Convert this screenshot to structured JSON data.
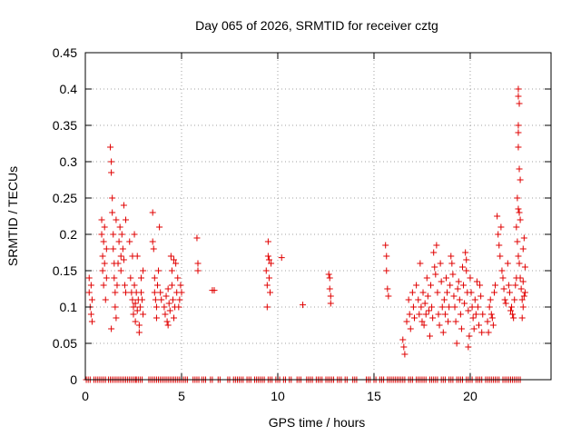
{
  "chart_data": {
    "type": "scatter",
    "title": "Day 065 of 2026, SRMTID for receiver cztg",
    "xlabel": "GPS time / hours",
    "ylabel": "SRMTID / TECUs",
    "xlim": [
      0,
      24.2
    ],
    "ylim": [
      0,
      0.45
    ],
    "x_ticks": [
      0,
      5,
      10,
      15,
      20
    ],
    "x_tick_labels": [
      "0",
      "5",
      "10",
      "15",
      "20"
    ],
    "y_ticks": [
      0,
      0.05,
      0.1,
      0.15,
      0.2,
      0.25,
      0.3,
      0.35,
      0.4,
      0.45
    ],
    "y_tick_labels": [
      "0",
      "0.05",
      "0.1",
      "0.15",
      "0.2",
      "0.25",
      "0.3",
      "0.35",
      "0.4",
      "0.45"
    ],
    "grid": true,
    "marker": "+",
    "series": [
      {
        "name": "SRMTID",
        "color": "#e00000",
        "points": [
          [
            0.2,
            0.14
          ],
          [
            0.2,
            0.12
          ],
          [
            0.25,
            0.1
          ],
          [
            0.3,
            0.13
          ],
          [
            0.3,
            0.09
          ],
          [
            0.35,
            0.08
          ],
          [
            0.35,
            0.11
          ],
          [
            0.85,
            0.2
          ],
          [
            0.85,
            0.22
          ],
          [
            0.9,
            0.17
          ],
          [
            0.9,
            0.15
          ],
          [
            0.95,
            0.13
          ],
          [
            0.95,
            0.19
          ],
          [
            1.0,
            0.21
          ],
          [
            1.0,
            0.16
          ],
          [
            1.05,
            0.11
          ],
          [
            1.1,
            0.14
          ],
          [
            1.1,
            0.18
          ],
          [
            1.3,
            0.32
          ],
          [
            1.35,
            0.3
          ],
          [
            1.35,
            0.285
          ],
          [
            1.4,
            0.25
          ],
          [
            1.4,
            0.23
          ],
          [
            1.45,
            0.2
          ],
          [
            1.45,
            0.18
          ],
          [
            1.5,
            0.16
          ],
          [
            1.5,
            0.14
          ],
          [
            1.55,
            0.12
          ],
          [
            1.55,
            0.1
          ],
          [
            1.6,
            0.22
          ],
          [
            1.6,
            0.085
          ],
          [
            1.65,
            0.13
          ],
          [
            1.35,
            0.07
          ],
          [
            1.7,
            0.16
          ],
          [
            1.75,
            0.19
          ],
          [
            1.8,
            0.21
          ],
          [
            1.85,
            0.17
          ],
          [
            1.85,
            0.15
          ],
          [
            1.9,
            0.2
          ],
          [
            1.95,
            0.18
          ],
          [
            2.0,
            0.165
          ],
          [
            2.0,
            0.24
          ],
          [
            2.05,
            0.13
          ],
          [
            2.1,
            0.12
          ],
          [
            2.1,
            0.22
          ],
          [
            2.3,
            0.19
          ],
          [
            2.35,
            0.14
          ],
          [
            2.4,
            0.12
          ],
          [
            2.45,
            0.11
          ],
          [
            2.5,
            0.1
          ],
          [
            2.5,
            0.09
          ],
          [
            2.55,
            0.13
          ],
          [
            2.6,
            0.08
          ],
          [
            2.6,
            0.105
          ],
          [
            2.65,
            0.12
          ],
          [
            2.7,
            0.095
          ],
          [
            2.7,
            0.17
          ],
          [
            2.75,
            0.11
          ],
          [
            2.8,
            0.075
          ],
          [
            2.8,
            0.065
          ],
          [
            2.85,
            0.1
          ],
          [
            2.9,
            0.14
          ],
          [
            2.9,
            0.12
          ],
          [
            2.95,
            0.11
          ],
          [
            3.0,
            0.09
          ],
          [
            3.0,
            0.15
          ],
          [
            2.55,
            0.2
          ],
          [
            2.45,
            0.17
          ],
          [
            3.5,
            0.23
          ],
          [
            3.5,
            0.19
          ],
          [
            3.55,
            0.18
          ],
          [
            3.6,
            0.14
          ],
          [
            3.6,
            0.12
          ],
          [
            3.65,
            0.11
          ],
          [
            3.7,
            0.1
          ],
          [
            3.7,
            0.085
          ],
          [
            3.75,
            0.13
          ],
          [
            3.8,
            0.15
          ],
          [
            3.85,
            0.21
          ],
          [
            3.9,
            0.12
          ],
          [
            3.95,
            0.11
          ],
          [
            4.1,
            0.1
          ],
          [
            4.15,
            0.09
          ],
          [
            4.2,
            0.115
          ],
          [
            4.25,
            0.08
          ],
          [
            4.3,
            0.125
          ],
          [
            4.35,
            0.105
          ],
          [
            4.4,
            0.095
          ],
          [
            4.45,
            0.17
          ],
          [
            4.5,
            0.15
          ],
          [
            4.5,
            0.13
          ],
          [
            4.55,
            0.11
          ],
          [
            4.6,
            0.085
          ],
          [
            4.65,
            0.1
          ],
          [
            4.7,
            0.16
          ],
          [
            4.75,
            0.12
          ],
          [
            4.8,
            0.14
          ],
          [
            4.85,
            0.1
          ],
          [
            4.9,
            0.11
          ],
          [
            4.95,
            0.13
          ],
          [
            5.0,
            0.12
          ],
          [
            4.3,
            0.075
          ],
          [
            4.6,
            0.165
          ],
          [
            5.8,
            0.195
          ],
          [
            5.85,
            0.16
          ],
          [
            5.85,
            0.15
          ],
          [
            6.6,
            0.123
          ],
          [
            6.7,
            0.123
          ],
          [
            9.4,
            0.15
          ],
          [
            9.45,
            0.13
          ],
          [
            9.45,
            0.1
          ],
          [
            9.5,
            0.19
          ],
          [
            9.5,
            0.17
          ],
          [
            9.55,
            0.165
          ],
          [
            9.55,
            0.14
          ],
          [
            9.6,
            0.12
          ],
          [
            9.65,
            0.16
          ],
          [
            10.2,
            0.168
          ],
          [
            11.3,
            0.103
          ],
          [
            12.65,
            0.145
          ],
          [
            12.7,
            0.14
          ],
          [
            12.7,
            0.125
          ],
          [
            12.75,
            0.115
          ],
          [
            12.75,
            0.105
          ],
          [
            15.6,
            0.185
          ],
          [
            15.65,
            0.17
          ],
          [
            15.65,
            0.15
          ],
          [
            15.7,
            0.125
          ],
          [
            15.75,
            0.115
          ],
          [
            16.5,
            0.055
          ],
          [
            16.55,
            0.045
          ],
          [
            16.6,
            0.035
          ],
          [
            16.7,
            0.08
          ],
          [
            16.8,
            0.11
          ],
          [
            16.85,
            0.09
          ],
          [
            16.9,
            0.07
          ],
          [
            17.0,
            0.12
          ],
          [
            17.05,
            0.1
          ],
          [
            17.1,
            0.085
          ],
          [
            17.2,
            0.13
          ],
          [
            17.3,
            0.11
          ],
          [
            17.35,
            0.09
          ],
          [
            17.4,
            0.16
          ],
          [
            17.45,
            0.1
          ],
          [
            17.5,
            0.08
          ],
          [
            17.55,
            0.12
          ],
          [
            17.6,
            0.075
          ],
          [
            17.65,
            0.105
          ],
          [
            17.7,
            0.09
          ],
          [
            17.75,
            0.14
          ],
          [
            17.8,
            0.115
          ],
          [
            17.85,
            0.095
          ],
          [
            17.9,
            0.06
          ],
          [
            17.95,
            0.13
          ],
          [
            18.0,
            0.1
          ],
          [
            18.05,
            0.085
          ],
          [
            18.1,
            0.175
          ],
          [
            18.15,
            0.155
          ],
          [
            18.2,
            0.145
          ],
          [
            18.25,
            0.185
          ],
          [
            18.3,
            0.12
          ],
          [
            18.35,
            0.09
          ],
          [
            18.4,
            0.075
          ],
          [
            18.45,
            0.16
          ],
          [
            18.5,
            0.135
          ],
          [
            18.55,
            0.1
          ],
          [
            18.6,
            0.065
          ],
          [
            18.65,
            0.11
          ],
          [
            18.7,
            0.09
          ],
          [
            18.75,
            0.14
          ],
          [
            18.8,
            0.12
          ],
          [
            18.85,
            0.08
          ],
          [
            18.9,
            0.1
          ],
          [
            18.95,
            0.13
          ],
          [
            19.0,
            0.17
          ],
          [
            19.05,
            0.16
          ],
          [
            19.1,
            0.145
          ],
          [
            19.15,
            0.115
          ],
          [
            19.2,
            0.1
          ],
          [
            19.25,
            0.08
          ],
          [
            19.3,
            0.05
          ],
          [
            19.35,
            0.125
          ],
          [
            19.4,
            0.135
          ],
          [
            19.45,
            0.11
          ],
          [
            19.5,
            0.09
          ],
          [
            19.55,
            0.07
          ],
          [
            19.6,
            0.155
          ],
          [
            19.65,
            0.13
          ],
          [
            19.7,
            0.105
          ],
          [
            19.75,
            0.175
          ],
          [
            19.8,
            0.15
          ],
          [
            19.85,
            0.12
          ],
          [
            19.9,
            0.095
          ],
          [
            19.95,
            0.06
          ],
          [
            19.9,
            0.045
          ],
          [
            19.8,
            0.165
          ],
          [
            20.0,
            0.14
          ],
          [
            20.05,
            0.12
          ],
          [
            20.1,
            0.1
          ],
          [
            20.15,
            0.085
          ],
          [
            20.2,
            0.07
          ],
          [
            20.25,
            0.11
          ],
          [
            20.3,
            0.09
          ],
          [
            20.35,
            0.135
          ],
          [
            20.4,
            0.1
          ],
          [
            20.45,
            0.075
          ],
          [
            20.5,
            0.13
          ],
          [
            20.55,
            0.115
          ],
          [
            20.6,
            0.065
          ],
          [
            20.65,
            0.09
          ],
          [
            20.9,
            0.08
          ],
          [
            20.95,
            0.065
          ],
          [
            21.0,
            0.1
          ],
          [
            21.05,
            0.11
          ],
          [
            21.1,
            0.09
          ],
          [
            21.15,
            0.085
          ],
          [
            21.2,
            0.075
          ],
          [
            21.25,
            0.12
          ],
          [
            21.3,
            0.13
          ],
          [
            21.4,
            0.225
          ],
          [
            21.45,
            0.2
          ],
          [
            21.5,
            0.185
          ],
          [
            21.55,
            0.17
          ],
          [
            21.6,
            0.21
          ],
          [
            21.65,
            0.15
          ],
          [
            21.7,
            0.14
          ],
          [
            21.75,
            0.125
          ],
          [
            21.8,
            0.11
          ],
          [
            21.85,
            0.105
          ],
          [
            21.95,
            0.16
          ],
          [
            22.0,
            0.13
          ],
          [
            22.05,
            0.12
          ],
          [
            22.1,
            0.095
          ],
          [
            22.15,
            0.1
          ],
          [
            22.2,
            0.09
          ],
          [
            22.25,
            0.085
          ],
          [
            22.3,
            0.11
          ],
          [
            22.35,
            0.13
          ],
          [
            22.4,
            0.14
          ],
          [
            22.5,
            0.4
          ],
          [
            22.5,
            0.39
          ],
          [
            22.55,
            0.38
          ],
          [
            22.5,
            0.35
          ],
          [
            22.5,
            0.34
          ],
          [
            22.5,
            0.32
          ],
          [
            22.55,
            0.29
          ],
          [
            22.6,
            0.275
          ],
          [
            22.45,
            0.25
          ],
          [
            22.5,
            0.235
          ],
          [
            22.55,
            0.23
          ],
          [
            22.6,
            0.22
          ],
          [
            22.4,
            0.21
          ],
          [
            22.45,
            0.19
          ],
          [
            22.5,
            0.17
          ],
          [
            22.55,
            0.16
          ],
          [
            22.6,
            0.14
          ],
          [
            22.65,
            0.125
          ],
          [
            22.7,
            0.11
          ],
          [
            22.75,
            0.1
          ],
          [
            22.7,
            0.085
          ],
          [
            22.75,
            0.18
          ],
          [
            22.8,
            0.195
          ],
          [
            22.85,
            0.155
          ],
          [
            22.75,
            0.135
          ],
          [
            22.8,
            0.115
          ],
          [
            22.85,
            0.12
          ]
        ]
      }
    ],
    "zero_band": [
      [
        0.05,
        0.25
      ],
      [
        0.45,
        1.1
      ],
      [
        1.2,
        2.6
      ],
      [
        2.65,
        3.0
      ],
      [
        3.3,
        4.9
      ],
      [
        5.0,
        5.3
      ],
      [
        5.6,
        5.9
      ],
      [
        6.05,
        6.3
      ],
      [
        6.5,
        6.65
      ],
      [
        6.9,
        7.0
      ],
      [
        7.4,
        7.5
      ],
      [
        7.7,
        8.2
      ],
      [
        8.4,
        8.6
      ],
      [
        8.8,
        9.3
      ],
      [
        9.5,
        9.7
      ],
      [
        9.9,
        10.1
      ],
      [
        10.3,
        10.4
      ],
      [
        10.6,
        10.75
      ],
      [
        11.0,
        11.2
      ],
      [
        11.5,
        11.8
      ],
      [
        12.0,
        12.3
      ],
      [
        12.5,
        12.9
      ],
      [
        13.1,
        13.3
      ],
      [
        13.5,
        13.6
      ],
      [
        13.9,
        14.1
      ],
      [
        14.6,
        14.8
      ],
      [
        15.0,
        15.1
      ],
      [
        15.3,
        15.5
      ],
      [
        15.7,
        16.6
      ],
      [
        16.8,
        17.0
      ],
      [
        17.2,
        17.7
      ],
      [
        17.9,
        18.3
      ],
      [
        18.5,
        18.7
      ],
      [
        18.9,
        19.1
      ],
      [
        19.3,
        19.6
      ],
      [
        19.8,
        20.1
      ],
      [
        20.3,
        20.6
      ],
      [
        20.8,
        21.5
      ],
      [
        21.7,
        22.4
      ],
      [
        22.5,
        22.6
      ]
    ]
  }
}
